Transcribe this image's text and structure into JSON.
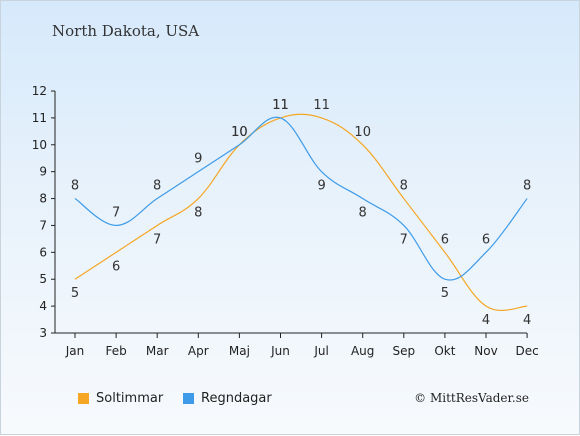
{
  "chart_data": {
    "type": "line",
    "title": "North Dakota, USA",
    "categories": [
      "Jan",
      "Feb",
      "Mar",
      "Apr",
      "Maj",
      "Jun",
      "Jul",
      "Aug",
      "Sep",
      "Okt",
      "Nov",
      "Dec"
    ],
    "ylim": [
      3,
      12
    ],
    "yticks": [
      3,
      4,
      5,
      6,
      7,
      8,
      9,
      10,
      11,
      12
    ],
    "grid": false,
    "legend_position": "bottom-left",
    "series": [
      {
        "name": "Soltimmar",
        "color": "#f5a623",
        "values": [
          5,
          6,
          7,
          8,
          10,
          11,
          11,
          10,
          8,
          6,
          4,
          4
        ]
      },
      {
        "name": "Regndagar",
        "color": "#3d9be9",
        "values": [
          8,
          7,
          8,
          9,
          10,
          11,
          9,
          8,
          7,
          5,
          6,
          8
        ]
      }
    ]
  },
  "legend": {
    "sun_label": "Soltimmar",
    "rain_label": "Regndagar",
    "sun_color": "#f5a623",
    "rain_color": "#3d9be9"
  },
  "copyright": "© MittResVader.se"
}
